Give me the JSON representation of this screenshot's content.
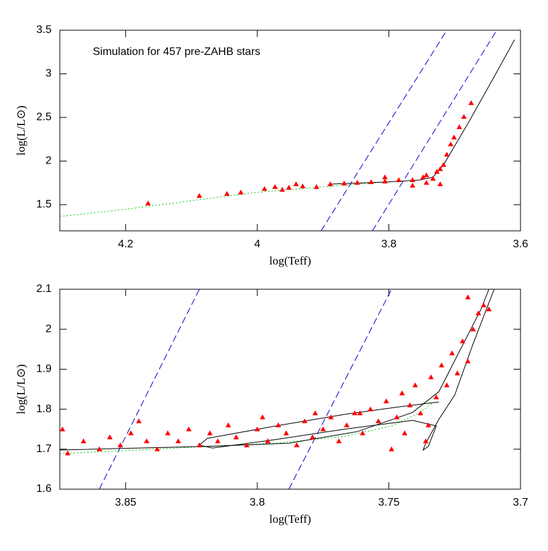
{
  "chart_data": [
    {
      "type": "scatter",
      "annotation": "Simulation for 457 pre-ZAHB stars",
      "xlabel": "log(Teff)",
      "ylabel": "log(L/L⊙)",
      "xlim": [
        4.3,
        3.6
      ],
      "ylim": [
        1.2,
        3.5
      ],
      "xticks": [
        4.2,
        4,
        3.8,
        3.6
      ],
      "yticks": [
        1.5,
        2,
        2.5,
        3,
        3.5
      ],
      "series": [
        {
          "color": "#00cc00",
          "line": "dotted",
          "x": [
            4.3,
            4.203,
            4.098,
            4.001,
            3.9,
            3.806
          ],
          "values": [
            1.365,
            1.444,
            1.547,
            1.641,
            1.704,
            1.759
          ]
        },
        {
          "color": "#0000cc",
          "line": "dashed",
          "x": [
            3.903,
            3.712
          ],
          "values": [
            1.2,
            3.5
          ]
        },
        {
          "color": "#0000cc",
          "line": "dashed",
          "x": [
            3.825,
            3.636
          ],
          "values": [
            1.2,
            3.5
          ]
        },
        {
          "color": "#000000",
          "line": "solid",
          "x": [
            3.889,
            3.806,
            3.753,
            3.733,
            3.717,
            3.68,
            3.639,
            3.609
          ],
          "values": [
            1.736,
            1.759,
            1.783,
            1.815,
            1.957,
            2.429,
            2.981,
            3.391
          ]
        },
        {
          "color": "#ff0000",
          "marker": "triangle",
          "x": [
            4.166,
            4.088,
            3.989,
            3.973,
            3.952,
            3.931,
            3.91,
            3.889,
            3.868,
            3.848,
            3.827,
            3.806,
            3.785,
            3.764,
            3.748,
            3.743,
            3.733,
            3.722,
            3.727,
            3.717,
            3.712,
            3.706,
            3.701,
            3.693,
            3.686,
            3.675,
            4.046,
            4.025,
            3.962,
            3.941,
            3.806,
            3.764,
            3.743,
            3.722
          ],
          "values": [
            1.515,
            1.602,
            1.681,
            1.704,
            1.696,
            1.712,
            1.704,
            1.736,
            1.744,
            1.752,
            1.759,
            1.767,
            1.783,
            1.783,
            1.815,
            1.752,
            1.799,
            1.736,
            1.878,
            1.957,
            2.075,
            2.193,
            2.272,
            2.39,
            2.508,
            2.666,
            1.625,
            1.641,
            1.673,
            1.736,
            1.815,
            1.72,
            1.838,
            1.909
          ]
        }
      ]
    },
    {
      "type": "scatter",
      "xlabel": "log(Teff)",
      "ylabel": "log(L/L⊙)",
      "xlim": [
        3.875,
        3.7
      ],
      "ylim": [
        1.6,
        2.1
      ],
      "xticks": [
        3.85,
        3.8,
        3.75,
        3.7
      ],
      "yticks": [
        1.6,
        1.7,
        1.8,
        1.9,
        2,
        2.1
      ],
      "series": [
        {
          "color": "#00cc00",
          "line": "dotted",
          "x": [
            3.875,
            3.845,
            3.819,
            3.793,
            3.767,
            3.749,
            3.738,
            3.733
          ],
          "values": [
            1.689,
            1.698,
            1.707,
            1.715,
            1.732,
            1.758,
            1.792,
            1.818
          ]
        },
        {
          "color": "#0000cc",
          "line": "dashed",
          "x": [
            3.86,
            3.822
          ],
          "values": [
            1.6,
            2.1
          ]
        },
        {
          "color": "#0000cc",
          "line": "dashed",
          "x": [
            3.788,
            3.749
          ],
          "values": [
            1.6,
            2.1
          ]
        },
        {
          "color": "#000000",
          "line": "solid",
          "x": [
            3.875,
            3.845,
            3.819,
            3.788,
            3.762,
            3.741,
            3.731,
            3.723,
            3.715,
            3.712
          ],
          "values": [
            1.698,
            1.703,
            1.707,
            1.715,
            1.744,
            1.792,
            1.844,
            1.947,
            2.05,
            2.1
          ]
        },
        {
          "color": "#000000",
          "line": "solid",
          "x": [
            3.71,
            3.718,
            3.725,
            3.731,
            3.736,
            3.737,
            3.735,
            3.732,
            3.741,
            3.767,
            3.793,
            3.817,
            3.822,
            3.819,
            3.793,
            3.767,
            3.746,
            3.731
          ],
          "values": [
            2.1,
            1.964,
            1.835,
            1.775,
            1.715,
            1.698,
            1.707,
            1.758,
            1.772,
            1.75,
            1.724,
            1.703,
            1.71,
            1.727,
            1.758,
            1.787,
            1.806,
            1.818
          ]
        },
        {
          "color": "#ff0000",
          "marker": "triangle",
          "x": [
            3.874,
            3.872,
            3.866,
            3.86,
            3.856,
            3.852,
            3.848,
            3.845,
            3.842,
            3.838,
            3.834,
            3.83,
            3.826,
            3.822,
            3.818,
            3.815,
            3.811,
            3.808,
            3.804,
            3.8,
            3.796,
            3.792,
            3.789,
            3.785,
            3.782,
            3.779,
            3.775,
            3.772,
            3.769,
            3.766,
            3.763,
            3.76,
            3.757,
            3.754,
            3.751,
            3.749,
            3.747,
            3.745,
            3.742,
            3.74,
            3.738,
            3.736,
            3.734,
            3.732,
            3.73,
            3.728,
            3.726,
            3.724,
            3.722,
            3.72,
            3.718,
            3.716,
            3.714,
            3.712,
            3.72,
            3.735,
            3.744,
            3.761,
            3.778,
            3.798
          ],
          "values": [
            1.75,
            1.69,
            1.72,
            1.7,
            1.73,
            1.71,
            1.74,
            1.77,
            1.72,
            1.7,
            1.74,
            1.72,
            1.75,
            1.71,
            1.74,
            1.72,
            1.76,
            1.73,
            1.71,
            1.75,
            1.72,
            1.76,
            1.74,
            1.71,
            1.77,
            1.73,
            1.75,
            1.78,
            1.72,
            1.76,
            1.79,
            1.74,
            1.8,
            1.77,
            1.82,
            1.7,
            1.78,
            1.84,
            1.81,
            1.86,
            1.79,
            1.72,
            1.88,
            1.83,
            1.91,
            1.86,
            1.94,
            1.89,
            1.97,
            1.92,
            2,
            2.04,
            2.06,
            2.05,
            2.08,
            1.76,
            1.74,
            1.79,
            1.79,
            1.78
          ]
        }
      ]
    }
  ]
}
